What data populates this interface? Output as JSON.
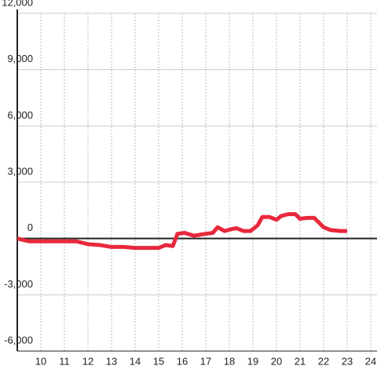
{
  "chart_data": {
    "type": "line",
    "x": [
      9,
      9.5,
      11.5,
      12,
      12.5,
      13,
      13.5,
      14,
      14.5,
      15,
      15.3,
      15.6,
      15.8,
      16.1,
      16.5,
      17,
      17.3,
      17.5,
      17.8,
      18.1,
      18.3,
      18.6,
      18.9,
      19.2,
      19.4,
      19.7,
      20,
      20.2,
      20.5,
      20.8,
      21,
      21.3,
      21.6,
      22,
      22.3,
      22.7,
      23
    ],
    "series": [
      {
        "color": "#e8283c",
        "values": [
          0,
          -150,
          -150,
          -300,
          -350,
          -450,
          -450,
          -500,
          -500,
          -500,
          -350,
          -400,
          250,
          300,
          150,
          250,
          300,
          600,
          400,
          500,
          550,
          400,
          400,
          700,
          1150,
          1150,
          1000,
          1200,
          1300,
          1300,
          1050,
          1100,
          1100,
          600,
          450,
          400,
          400
        ]
      }
    ],
    "xlim": [
      9,
      24.3
    ],
    "xticks": [
      10,
      11,
      12,
      13,
      14,
      15,
      16,
      17,
      18,
      19,
      20,
      21,
      22,
      23,
      24
    ],
    "ylim": [
      -6000,
      12000
    ],
    "yticks": [
      {
        "value": -6000,
        "label": "-6,000"
      },
      {
        "value": -3000,
        "label": "-3,000"
      },
      0,
      {
        "value": 3000,
        "label": "3,000"
      },
      {
        "value": 6000,
        "label": "6,000"
      },
      {
        "value": 9000,
        "label": "9,000"
      },
      {
        "value": 12000,
        "label": "12,000"
      }
    ],
    "grid": true
  }
}
